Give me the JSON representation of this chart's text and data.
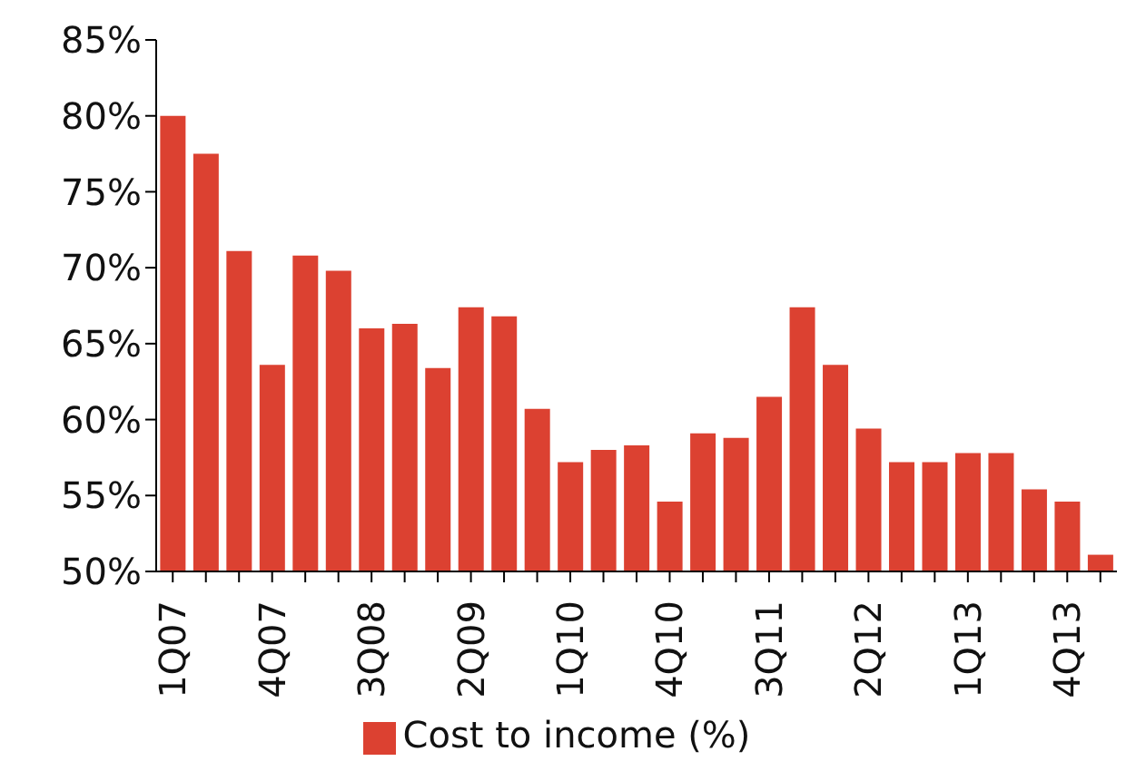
{
  "chart_data": {
    "type": "bar",
    "categories": [
      "1Q07",
      null,
      null,
      "4Q07",
      null,
      null,
      "3Q08",
      null,
      null,
      "2Q09",
      null,
      null,
      "1Q10",
      null,
      null,
      "4Q10",
      null,
      null,
      "3Q11",
      null,
      null,
      "2Q12",
      null,
      null,
      "1Q13",
      null,
      null,
      "4Q13",
      null
    ],
    "series": [
      {
        "name": "Cost to income (%)",
        "color": "#dc4131",
        "values": [
          80.0,
          77.5,
          71.1,
          63.6,
          70.8,
          69.8,
          66.0,
          66.3,
          63.4,
          67.4,
          66.8,
          60.7,
          57.2,
          58.0,
          58.3,
          54.6,
          59.1,
          58.8,
          61.5,
          67.4,
          63.6,
          59.4,
          57.2,
          57.2,
          57.8,
          57.8,
          55.4,
          54.6,
          51.1
        ]
      }
    ],
    "ylim": [
      50,
      85
    ],
    "yticks": [
      {
        "value": 50,
        "label": "50%"
      },
      {
        "value": 55,
        "label": "55%"
      },
      {
        "value": 60,
        "label": "60%"
      },
      {
        "value": 65,
        "label": "65%"
      },
      {
        "value": 70,
        "label": "70%"
      },
      {
        "value": 75,
        "label": "75%"
      },
      {
        "value": 80,
        "label": "80%"
      },
      {
        "value": 85,
        "label": "85%"
      }
    ],
    "grid": false,
    "legend": "bottom"
  }
}
